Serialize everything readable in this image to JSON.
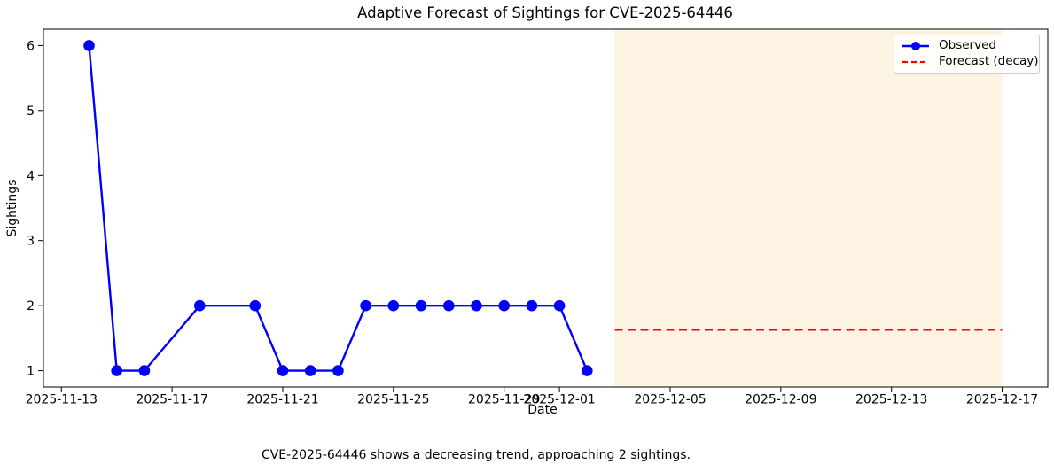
{
  "chart_data": {
    "type": "line",
    "title": "Adaptive Forecast of Sightings for CVE-2025-64446",
    "caption": "CVE-2025-64446 shows a decreasing trend, approaching 2 sightings.",
    "xlabel": "Date",
    "ylabel": "Sightings",
    "grid": false,
    "legend_position": "upper right",
    "x_axis": {
      "base_date": "2025-11-13",
      "lim_days": [
        -0.65,
        35.65
      ],
      "tick_dates": [
        "2025-11-13",
        "2025-11-17",
        "2025-11-21",
        "2025-11-25",
        "2025-11-29",
        "2025-12-01",
        "2025-12-05",
        "2025-12-09",
        "2025-12-13",
        "2025-12-17"
      ]
    },
    "y_axis": {
      "lim": [
        0.75,
        6.25
      ],
      "ticks": [
        1,
        2,
        3,
        4,
        5,
        6
      ]
    },
    "series": [
      {
        "name": "Observed",
        "color": "#0000ff",
        "line_style": "solid",
        "marker": "circle",
        "points": [
          [
            "2025-11-14",
            6
          ],
          [
            "2025-11-15",
            1
          ],
          [
            "2025-11-16",
            1
          ],
          [
            "2025-11-18",
            2
          ],
          [
            "2025-11-20",
            2
          ],
          [
            "2025-11-21",
            1
          ],
          [
            "2025-11-22",
            1
          ],
          [
            "2025-11-23",
            1
          ],
          [
            "2025-11-24",
            2
          ],
          [
            "2025-11-25",
            2
          ],
          [
            "2025-11-26",
            2
          ],
          [
            "2025-11-27",
            2
          ],
          [
            "2025-11-28",
            2
          ],
          [
            "2025-11-29",
            2
          ],
          [
            "2025-11-30",
            2
          ],
          [
            "2025-12-01",
            2
          ],
          [
            "2025-12-02",
            1
          ]
        ]
      },
      {
        "name": "Forecast (decay)",
        "color": "#ff0000",
        "line_style": "dashed",
        "marker": "none",
        "points": [
          [
            "2025-12-03",
            1.63
          ],
          [
            "2025-12-17",
            1.63
          ]
        ]
      }
    ],
    "forecast_region": {
      "start": "2025-12-03",
      "end": "2025-12-17",
      "fill": "#fdf3e3"
    }
  }
}
